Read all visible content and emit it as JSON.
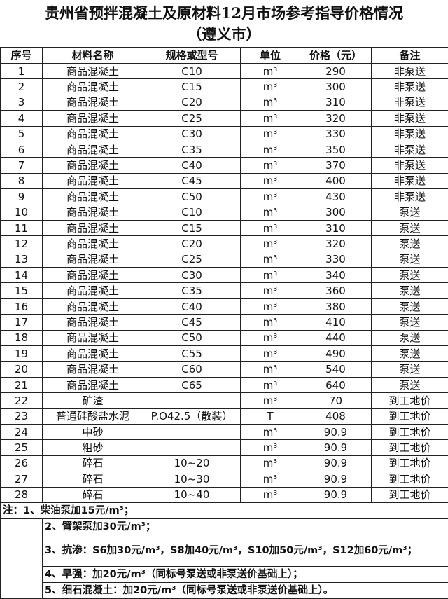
{
  "title": {
    "line1": "贵州省预拌混凝土及原材料12月市场参考指导价格情况",
    "line2": "（遵义市）"
  },
  "headers": [
    "序号",
    "材料名称",
    "规格或型号",
    "单位",
    "价格（元）",
    "备注"
  ],
  "rows": [
    [
      "1",
      "商品混凝土",
      "C10",
      "m³",
      "290",
      "非泵送"
    ],
    [
      "2",
      "商品混凝土",
      "C15",
      "m³",
      "300",
      "非泵送"
    ],
    [
      "3",
      "商品混凝土",
      "C20",
      "m³",
      "310",
      "非泵送"
    ],
    [
      "4",
      "商品混凝土",
      "C25",
      "m³",
      "320",
      "非泵送"
    ],
    [
      "5",
      "商品混凝土",
      "C30",
      "m³",
      "330",
      "非泵送"
    ],
    [
      "6",
      "商品混凝土",
      "C35",
      "m³",
      "350",
      "非泵送"
    ],
    [
      "7",
      "商品混凝土",
      "C40",
      "m³",
      "370",
      "非泵送"
    ],
    [
      "8",
      "商品混凝土",
      "C45",
      "m³",
      "400",
      "非泵送"
    ],
    [
      "9",
      "商品混凝土",
      "C50",
      "m³",
      "430",
      "非泵送"
    ],
    [
      "10",
      "商品混凝土",
      "C10",
      "m³",
      "300",
      "泵送"
    ],
    [
      "11",
      "商品混凝土",
      "C15",
      "m³",
      "310",
      "泵送"
    ],
    [
      "12",
      "商品混凝土",
      "C20",
      "m³",
      "320",
      "泵送"
    ],
    [
      "13",
      "商品混凝土",
      "C25",
      "m³",
      "330",
      "泵送"
    ],
    [
      "14",
      "商品混凝土",
      "C30",
      "m³",
      "340",
      "泵送"
    ],
    [
      "15",
      "商品混凝土",
      "C35",
      "m³",
      "360",
      "泵送"
    ],
    [
      "16",
      "商品混凝土",
      "C40",
      "m³",
      "380",
      "泵送"
    ],
    [
      "17",
      "商品混凝土",
      "C45",
      "m³",
      "410",
      "泵送"
    ],
    [
      "18",
      "商品混凝土",
      "C50",
      "m³",
      "440",
      "泵送"
    ],
    [
      "19",
      "商品混凝土",
      "C55",
      "m³",
      "490",
      "泵送"
    ],
    [
      "20",
      "商品混凝土",
      "C60",
      "m³",
      "540",
      "泵送"
    ],
    [
      "21",
      "商品混凝土",
      "C65",
      "m³",
      "640",
      "泵送"
    ],
    [
      "22",
      "矿渣",
      "",
      "m³",
      "70",
      "到工地价"
    ],
    [
      "23",
      "普通硅酸盐水泥",
      "P.O42.5（散装）",
      "T",
      "408",
      "到工地价"
    ],
    [
      "24",
      "中砂",
      "",
      "m³",
      "90.9",
      "到工地价"
    ],
    [
      "25",
      "粗砂",
      "",
      "m³",
      "90.9",
      "到工地价"
    ],
    [
      "26",
      "碎石",
      "10~20",
      "m³",
      "90.9",
      "到工地价"
    ],
    [
      "27",
      "碎石",
      "10~30",
      "m³",
      "90.9",
      "到工地价"
    ],
    [
      "28",
      "碎石",
      "10~40",
      "m³",
      "90.9",
      "到工地价"
    ]
  ],
  "notes": [
    "注：1、柴油泵加15元/m³；",
    "2、臂架泵加30元/m³；",
    "3、抗渗：S6加30元/m³，S8加40元/m³，S10加50元/m³，S12加60元/m³；",
    "4、早强：加20元/m³（同标号泵送或非泵送价基础上）；",
    "5、细石混凝土：加20元/m³（同标号泵送或非泵送价基础上）。"
  ]
}
